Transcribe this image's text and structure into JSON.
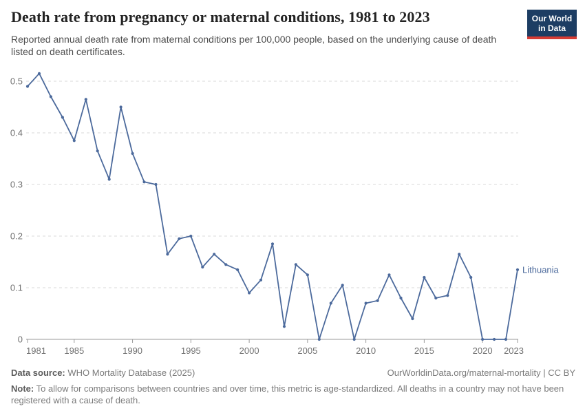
{
  "header": {
    "title": "Death rate from pregnancy or maternal conditions, 1981 to 2023",
    "subtitle": "Reported annual death rate from maternal conditions per 100,000 people, based on the underlying cause of death listed on death certificates."
  },
  "logo": {
    "line1": "Our World",
    "line2": "in Data",
    "bg_color": "#1d3d63",
    "stripe_color": "#d73c34"
  },
  "chart_data": {
    "type": "line",
    "title": "Death rate from pregnancy or maternal conditions, 1981 to 2023",
    "xlabel": "",
    "ylabel": "",
    "xlim": [
      1981,
      2023
    ],
    "ylim": [
      0,
      0.52
    ],
    "grid": "dashed horizontal gridlines, solid x-axis",
    "legend_position": "label at end of line",
    "x_ticks": [
      1981,
      1985,
      1990,
      1995,
      2000,
      2005,
      2010,
      2015,
      2020,
      2023
    ],
    "y_ticks": [
      0,
      0.1,
      0.2,
      0.3,
      0.4,
      0.5
    ],
    "series": [
      {
        "name": "Lithuania",
        "color": "#4c6a9c",
        "x": [
          1981,
          1982,
          1983,
          1984,
          1985,
          1986,
          1987,
          1988,
          1989,
          1990,
          1991,
          1992,
          1993,
          1994,
          1995,
          1996,
          1997,
          1998,
          1999,
          2000,
          2001,
          2002,
          2003,
          2004,
          2005,
          2006,
          2007,
          2008,
          2009,
          2010,
          2011,
          2012,
          2013,
          2014,
          2015,
          2016,
          2017,
          2018,
          2019,
          2020,
          2021,
          2022,
          2023
        ],
        "values": [
          0.49,
          0.515,
          0.47,
          0.43,
          0.385,
          0.465,
          0.365,
          0.31,
          0.45,
          0.36,
          0.305,
          0.3,
          0.165,
          0.195,
          0.2,
          0.14,
          0.165,
          0.145,
          0.135,
          0.09,
          0.115,
          0.185,
          0.025,
          0.145,
          0.125,
          0,
          0.07,
          0.105,
          0,
          0.07,
          0.075,
          0.125,
          0.08,
          0.04,
          0.12,
          0.08,
          0.085,
          0.165,
          0.12,
          0,
          0,
          0,
          0.135
        ]
      }
    ]
  },
  "footer": {
    "datasource_label": "Data source:",
    "datasource_value": " WHO Mortality Database (2025)",
    "link": "OurWorldinData.org/maternal-mortality | CC BY",
    "note_label": "Note:",
    "note_value": " To allow for comparisons between countries and over time, this metric is age-standardized. All deaths in a country may not have been registered with a cause of death."
  },
  "colors": {
    "line": "#4c6a9c",
    "grid": "#dadada",
    "axis": "#9a9a9a",
    "tick_text": "#707070"
  }
}
